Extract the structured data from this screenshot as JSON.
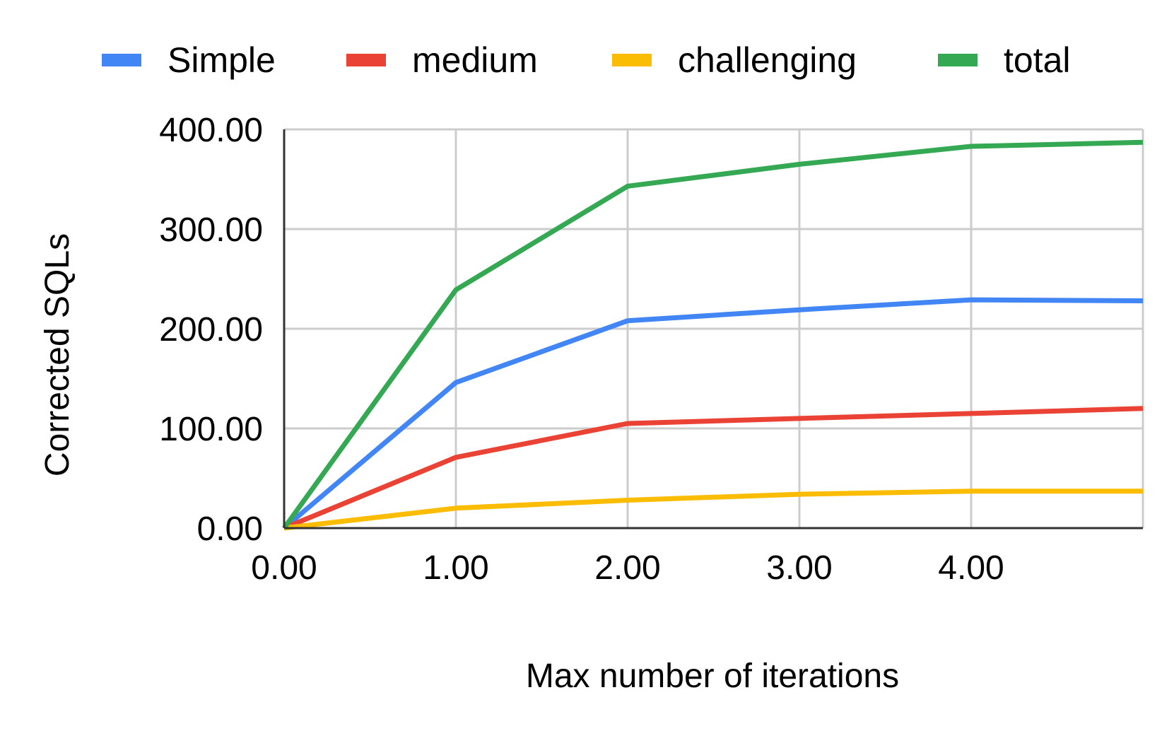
{
  "chart_data": {
    "type": "line",
    "title": "",
    "xlabel": "Max number of iterations",
    "ylabel": "Corrected SQLs",
    "x": [
      0,
      1,
      2,
      3,
      4,
      5
    ],
    "series": [
      {
        "name": "Simple",
        "color": "#4285F4",
        "values": [
          0,
          146,
          208,
          219,
          229,
          228
        ]
      },
      {
        "name": "medium",
        "color": "#EA4335",
        "values": [
          0,
          71,
          105,
          110,
          115,
          120
        ]
      },
      {
        "name": "challenging",
        "color": "#FBBC04",
        "values": [
          0,
          20,
          28,
          34,
          37,
          37
        ]
      },
      {
        "name": "total",
        "color": "#34A853",
        "values": [
          0,
          239,
          343,
          365,
          383,
          387
        ]
      }
    ],
    "xlim": [
      0,
      5
    ],
    "ylim": [
      0,
      400
    ],
    "x_ticks": [
      0,
      1,
      2,
      3,
      4
    ],
    "x_tick_labels": [
      "0.00",
      "1.00",
      "2.00",
      "3.00",
      "4.00"
    ],
    "y_ticks": [
      0,
      100,
      200,
      300,
      400
    ],
    "y_tick_labels": [
      "0.00",
      "100.00",
      "200.00",
      "300.00",
      "400.00"
    ],
    "grid": true,
    "legend_position": "top"
  }
}
